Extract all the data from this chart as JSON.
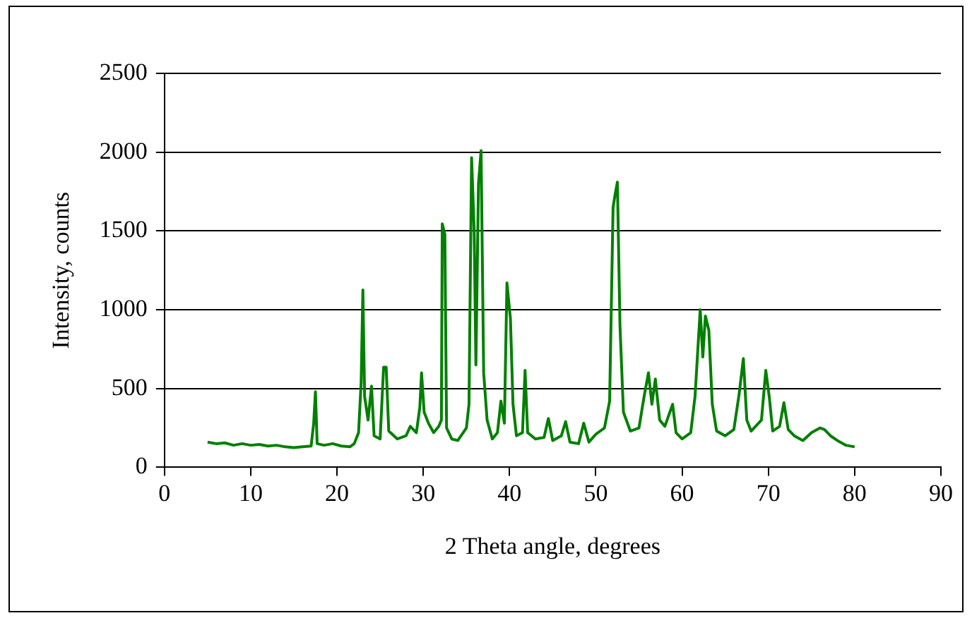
{
  "chart_data": {
    "type": "line",
    "xlabel": "2 Theta angle, degrees",
    "ylabel": "Intensity, counts",
    "xlim": [
      0,
      90
    ],
    "xticks": [
      0,
      10,
      20,
      30,
      40,
      50,
      60,
      70,
      80,
      90
    ],
    "ylim": [
      0,
      2500
    ],
    "yticks": [
      0,
      500,
      1000,
      1500,
      2000,
      2500
    ],
    "grid": "y",
    "legend": false,
    "marker": "none",
    "line_style": "solid",
    "series": [
      {
        "color": "#008000",
        "x": [
          5,
          6,
          7,
          8,
          9,
          10,
          11,
          12,
          13,
          14,
          15,
          16,
          17,
          17.3,
          17.5,
          17.7,
          18.5,
          19.5,
          20.5,
          21.5,
          22,
          22.5,
          22.8,
          23.0,
          23.2,
          23.6,
          24.0,
          24.3,
          25,
          25.4,
          25.7,
          26,
          27,
          28,
          28.5,
          29.2,
          29.6,
          29.8,
          30.1,
          30.6,
          31.2,
          31.8,
          32.1,
          32.2,
          32.5,
          32.7,
          33.3,
          34,
          35,
          35.3,
          35.6,
          35.9,
          36.1,
          36.4,
          36.7,
          37,
          37.4,
          38,
          38.6,
          39,
          39.4,
          39.7,
          40.1,
          40.4,
          40.8,
          41.5,
          41.8,
          42.1,
          43,
          44,
          44.5,
          45,
          46,
          46.5,
          47,
          48,
          48.6,
          49.2,
          50,
          51,
          51.6,
          52.0,
          52.2,
          52.5,
          52.8,
          53.2,
          54,
          55,
          55.6,
          56.1,
          56.5,
          56.9,
          57.4,
          58,
          58.9,
          59.3,
          60,
          61,
          61.5,
          62.1,
          62.4,
          62.7,
          63.1,
          63.5,
          64,
          65,
          66,
          66.6,
          67.1,
          67.5,
          68,
          69.2,
          69.7,
          70.1,
          70.5,
          71.3,
          71.8,
          72.3,
          73,
          74,
          75,
          76,
          76.5,
          77.2,
          78,
          79,
          80
        ],
        "values": [
          160,
          150,
          155,
          140,
          150,
          140,
          145,
          135,
          140,
          130,
          125,
          130,
          135,
          280,
          480,
          150,
          140,
          150,
          135,
          130,
          150,
          220,
          540,
          1125,
          450,
          300,
          515,
          200,
          180,
          635,
          635,
          230,
          180,
          200,
          260,
          220,
          380,
          600,
          350,
          280,
          220,
          260,
          300,
          1545,
          1480,
          250,
          180,
          170,
          250,
          400,
          1965,
          1500,
          650,
          1800,
          2010,
          600,
          300,
          180,
          220,
          420,
          280,
          1170,
          945,
          400,
          200,
          220,
          615,
          220,
          180,
          190,
          310,
          170,
          200,
          290,
          160,
          150,
          280,
          160,
          210,
          250,
          420,
          1650,
          1720,
          1810,
          900,
          350,
          230,
          250,
          450,
          600,
          400,
          560,
          300,
          260,
          400,
          220,
          180,
          220,
          450,
          1000,
          700,
          960,
          870,
          400,
          230,
          200,
          240,
          460,
          690,
          300,
          230,
          300,
          615,
          450,
          230,
          260,
          410,
          240,
          200,
          170,
          220,
          250,
          240,
          200,
          170,
          140,
          130
        ]
      }
    ]
  }
}
